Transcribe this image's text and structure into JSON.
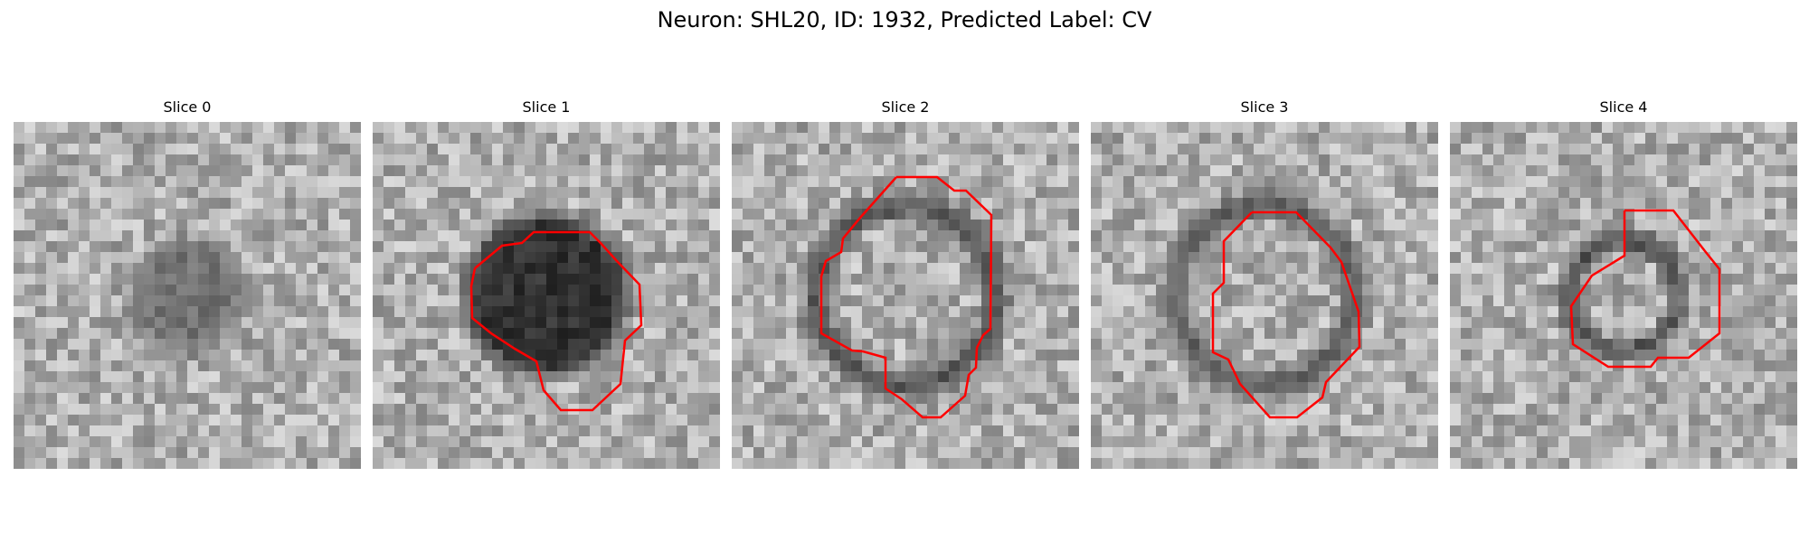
{
  "figure": {
    "title": "Neuron: SHL20, ID: 1932, Predicted Label: CV"
  },
  "panels": [
    {
      "title": "Slice 0",
      "blob": {
        "ring": false,
        "r": 0.2,
        "fill": 95,
        "hole": 0
      }
    },
    {
      "title": "Slice 1",
      "blob": {
        "ring": false,
        "r": 0.27,
        "fill": 30,
        "hole": 0
      }
    },
    {
      "title": "Slice 2",
      "blob": {
        "ring": true,
        "r": 0.32,
        "fill": 60,
        "hole": 0.2
      }
    },
    {
      "title": "Slice 3",
      "blob": {
        "ring": true,
        "r": 0.32,
        "fill": 70,
        "hole": 0.2
      }
    },
    {
      "title": "Slice 4",
      "blob": {
        "ring": true,
        "r": 0.21,
        "fill": 45,
        "hole": 0.11
      }
    }
  ],
  "contour_color": "#ff0000"
}
